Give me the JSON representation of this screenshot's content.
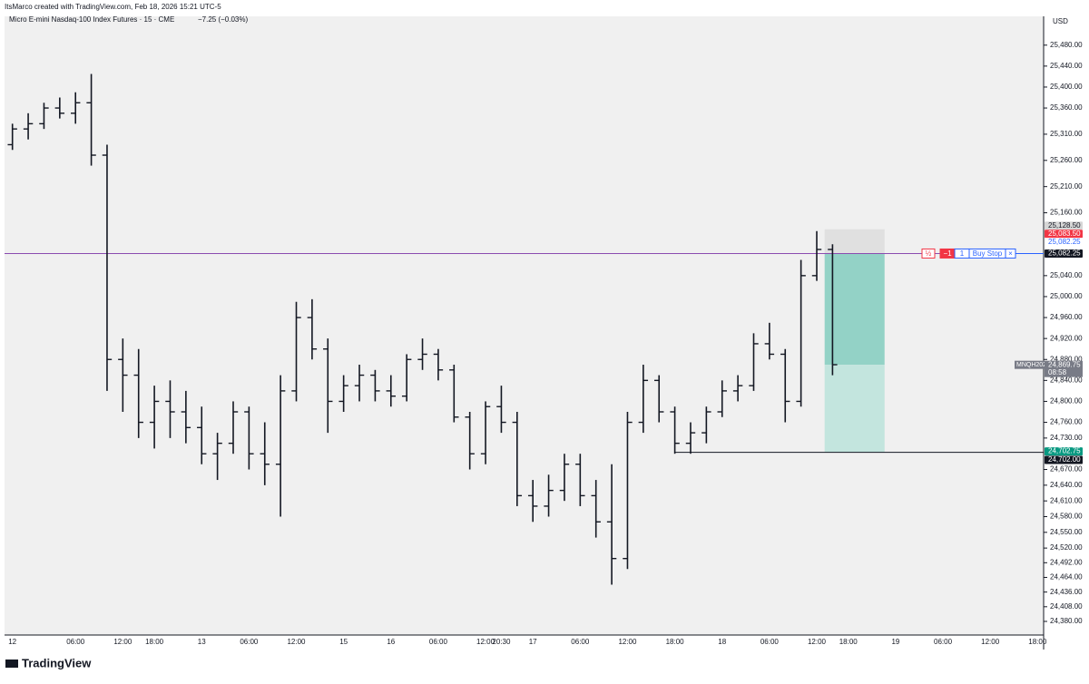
{
  "header": {
    "credit": "ItsMarco created with TradingView.com, Feb 18, 2026 15:21 UTC-5",
    "legend": "Micro E-mini Nasdaq-100 Index Futures · 15 · CME",
    "change": "−7.25 (−0.03%)",
    "currency": "USD",
    "logo": "TradingView"
  },
  "chart_data": {
    "type": "ohlc",
    "color": "#131722",
    "categories": [
      "12",
      null,
      null,
      null,
      "06:00",
      null,
      null,
      "12:00",
      null,
      "18:00",
      null,
      null,
      "13",
      null,
      null,
      "06:00",
      null,
      null,
      "12:00",
      null,
      null,
      "15",
      null,
      null,
      "16",
      null,
      null,
      "06:00",
      null,
      null,
      "12:00",
      "20:30",
      null,
      "17",
      null,
      null,
      "06:00",
      null,
      null,
      "12:00",
      null,
      null,
      "18:00",
      null,
      null,
      "18",
      null,
      null,
      "06:00",
      null,
      null,
      "12:00",
      null,
      "18:00",
      null,
      null,
      "19",
      null,
      null,
      "06:00",
      null,
      null,
      "12:00",
      null,
      null,
      "18:00"
    ],
    "open": [
      25290,
      25320,
      25330,
      25360,
      25350,
      25370,
      25270,
      24880,
      24850,
      24760,
      24800,
      24780,
      24750,
      24700,
      24720,
      24780,
      24700,
      24680,
      24820,
      24960,
      24900,
      24800,
      24830,
      24850,
      24820,
      24810,
      24880,
      24890,
      24860,
      24770,
      24700,
      24790,
      24760,
      24620,
      24600,
      24630,
      24680,
      24620,
      24570,
      24500,
      24760,
      24840,
      24780,
      24720,
      24740,
      24780,
      24820,
      24830,
      24910,
      24890,
      24800,
      25040,
      25090,
      null,
      null,
      null,
      null,
      null,
      null,
      null,
      null,
      null,
      null,
      null,
      null,
      null
    ],
    "high": [
      25330,
      25350,
      25370,
      25380,
      25390,
      25425,
      25290,
      24920,
      24900,
      24830,
      24840,
      24820,
      24790,
      24740,
      24800,
      24790,
      24760,
      24850,
      24990,
      24995,
      24920,
      24850,
      24870,
      24860,
      24850,
      24890,
      24920,
      24900,
      24870,
      24780,
      24800,
      24830,
      24780,
      24650,
      24660,
      24700,
      24700,
      24650,
      24680,
      24780,
      24870,
      24850,
      24790,
      24760,
      24790,
      24840,
      24850,
      24930,
      24950,
      24900,
      25070,
      25125,
      25100,
      null,
      null,
      null,
      null,
      null,
      null,
      null,
      null,
      null,
      null,
      null,
      null,
      null
    ],
    "low": [
      25280,
      25300,
      25320,
      25340,
      25330,
      25250,
      24820,
      24780,
      24730,
      24710,
      24730,
      24720,
      24680,
      24650,
      24700,
      24670,
      24640,
      24580,
      24800,
      24880,
      24740,
      24780,
      24800,
      24800,
      24790,
      24800,
      24860,
      24840,
      24760,
      24670,
      24680,
      24740,
      24600,
      24570,
      24580,
      24610,
      24600,
      24540,
      24450,
      24480,
      24740,
      24760,
      24700,
      24700,
      24720,
      24770,
      24800,
      24820,
      24880,
      24760,
      24790,
      25030,
      24850,
      null,
      null,
      null,
      null,
      null,
      null,
      null,
      null,
      null,
      null,
      null,
      null,
      null
    ],
    "close": [
      25320,
      25330,
      25360,
      25350,
      25370,
      25270,
      24880,
      24850,
      24760,
      24800,
      24780,
      24750,
      24700,
      24720,
      24780,
      24700,
      24680,
      24820,
      24960,
      24900,
      24800,
      24830,
      24850,
      24820,
      24810,
      24880,
      24890,
      24860,
      24770,
      24700,
      24790,
      24760,
      24620,
      24600,
      24630,
      24680,
      24620,
      24570,
      24500,
      24760,
      24840,
      24780,
      24720,
      24740,
      24780,
      24820,
      24830,
      24910,
      24890,
      24800,
      25040,
      25090,
      24870,
      null,
      null,
      null,
      null,
      null,
      null,
      null,
      null,
      null,
      null,
      null,
      null,
      null
    ],
    "ylim": [
      24354,
      25535
    ],
    "yticks": [
      {
        "value": 25480,
        "label": "25,480.00"
      },
      {
        "value": 25440,
        "label": "25,440.00"
      },
      {
        "value": 25400,
        "label": "25,400.00"
      },
      {
        "value": 25360,
        "label": "25,360.00"
      },
      {
        "value": 25310,
        "label": "25,310.00"
      },
      {
        "value": 25260,
        "label": "25,260.00"
      },
      {
        "value": 25210,
        "label": "25,210.00"
      },
      {
        "value": 25160,
        "label": "25,160.00"
      },
      {
        "value": 25040,
        "label": "25,040.00"
      },
      {
        "value": 25000,
        "label": "25,000.00"
      },
      {
        "value": 24960,
        "label": "24,960.00"
      },
      {
        "value": 24920,
        "label": "24,920.00"
      },
      {
        "value": 24880,
        "label": "24,880.00"
      },
      {
        "value": 24840,
        "label": "24,840.00"
      },
      {
        "value": 24800,
        "label": "24,800.00"
      },
      {
        "value": 24760,
        "label": "24,760.00"
      },
      {
        "value": 24730,
        "label": "24,730.00"
      },
      {
        "value": 24670,
        "label": "24,670.00"
      },
      {
        "value": 24640,
        "label": "24,640.00"
      },
      {
        "value": 24610,
        "label": "24,610.00"
      },
      {
        "value": 24580,
        "label": "24,580.00"
      },
      {
        "value": 24550,
        "label": "24,550.00"
      },
      {
        "value": 24520,
        "label": "24,520.00"
      },
      {
        "value": 24492,
        "label": "24,492.00"
      },
      {
        "value": 24464,
        "label": "24,464.00"
      },
      {
        "value": 24436,
        "label": "24,436.00"
      },
      {
        "value": 24408,
        "label": "24,408.00"
      },
      {
        "value": 24380,
        "label": "24,380.00"
      }
    ],
    "grid": false,
    "position": {
      "stop": 25128.5,
      "entry": 25082.25,
      "current": 24869.75,
      "target": 24702.75,
      "stop_color": "#e0e0e0",
      "profit_color": "#93d2c6",
      "target_color": "#c3e5de"
    },
    "entry_line_color": "#8a4bb0",
    "axis_labels": [
      {
        "value": 25128.5,
        "label": "25,128.50",
        "color": "#d6d6d6",
        "text_color": "#131722"
      },
      {
        "value": 25083.5,
        "label": "25,083.50",
        "color": "#f23645",
        "text_color": "#ffffff"
      },
      {
        "value": 25082.25,
        "label": "25,082.25",
        "color": "#ffffff",
        "text_color": "#2962ff"
      },
      {
        "value": 25082.25,
        "label": "25,082.25",
        "color": "#131722",
        "text_color": "#ffffff"
      },
      {
        "value": 24702.75,
        "label": "24,702.75",
        "color": "#089981",
        "text_color": "#ffffff"
      },
      {
        "value": 24702,
        "label": "24,702.00",
        "color": "#131722",
        "text_color": "#ffffff"
      }
    ],
    "price_tag": {
      "symbol": "MNQH2026",
      "value": 24869.75,
      "label": "24,869.75",
      "countdown": "08:58",
      "color": "#787b86"
    },
    "order": {
      "value": 25082.25,
      "half": "½",
      "qty_change": "−1",
      "qty": "1",
      "type": "Buy Stop",
      "close": "×"
    }
  }
}
